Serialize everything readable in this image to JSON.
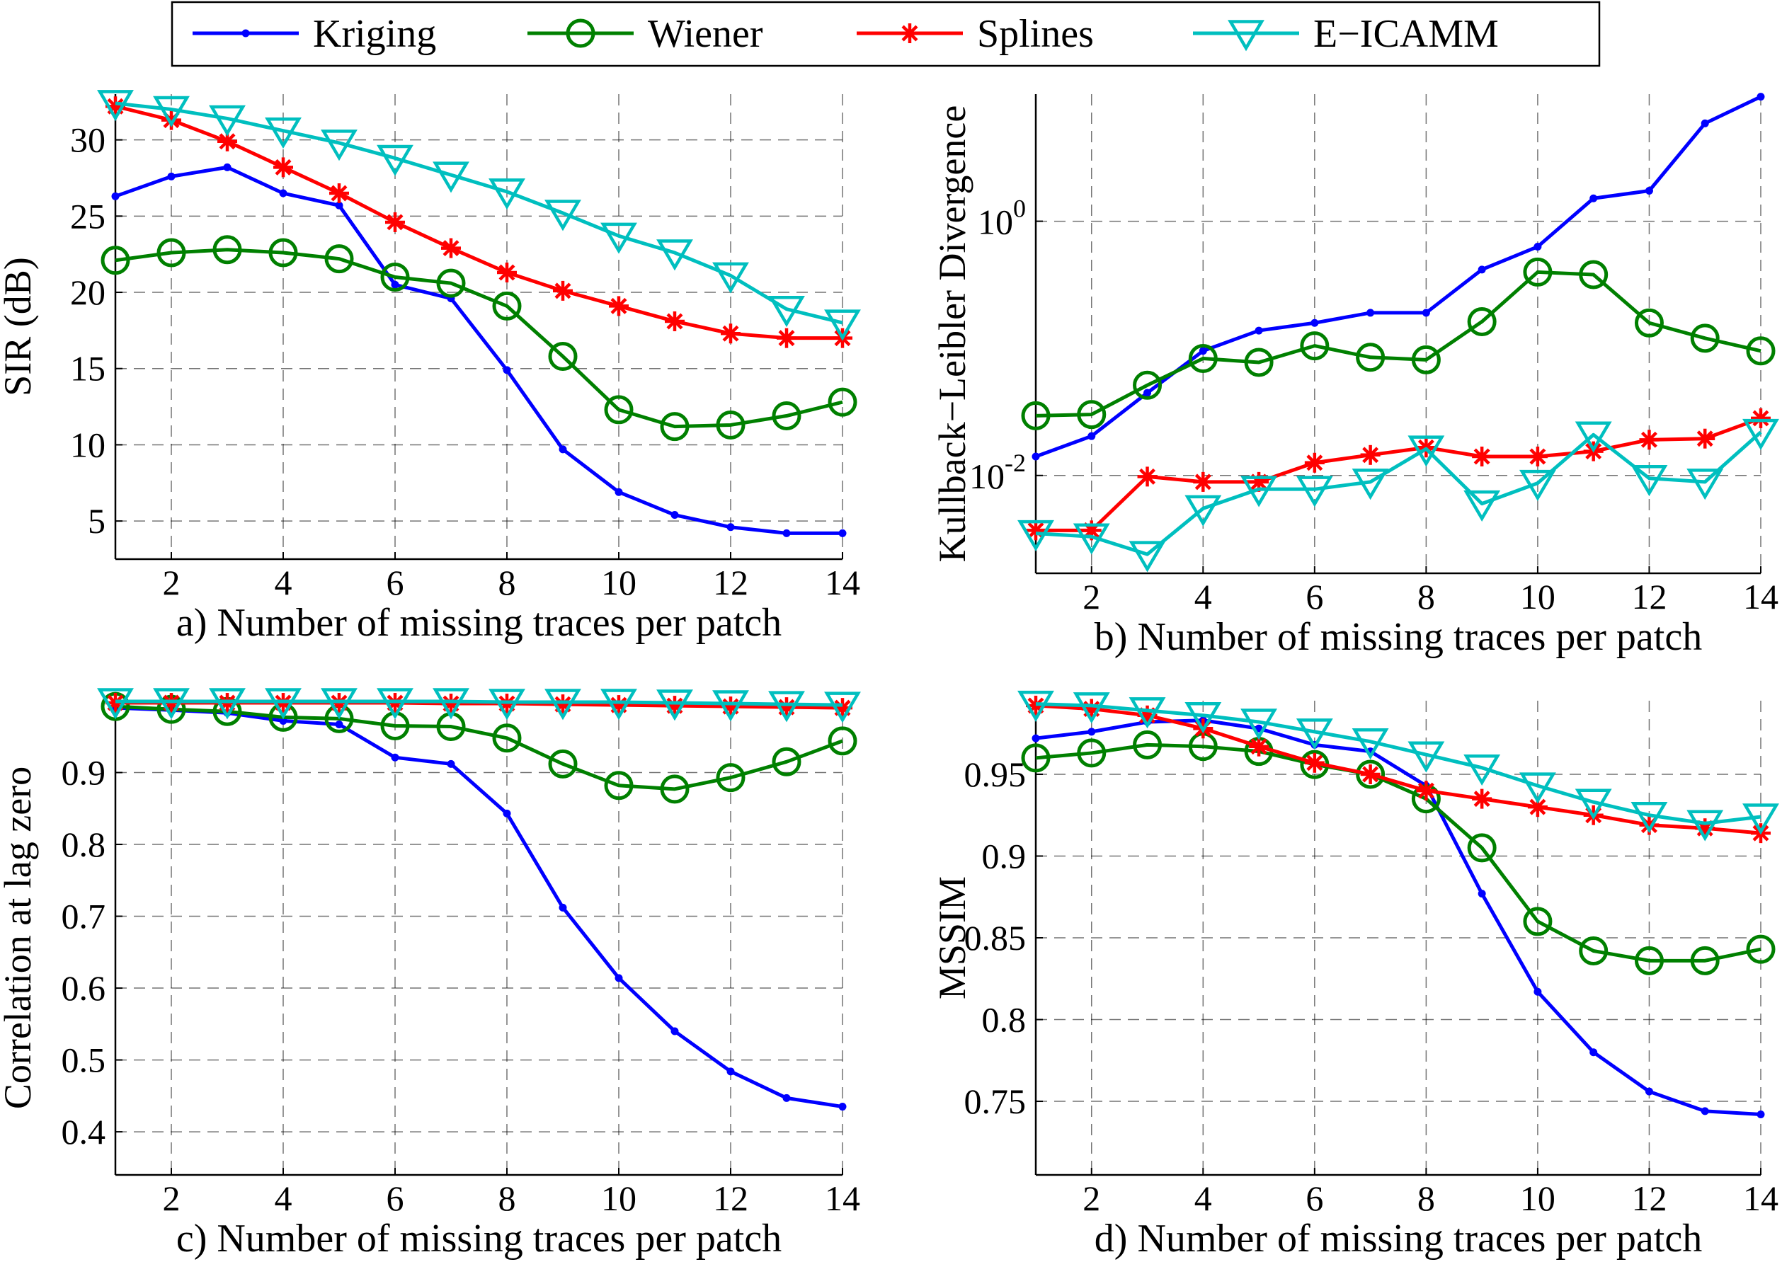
{
  "legend": {
    "entries": [
      {
        "name": "Kriging",
        "color": "#0000ff",
        "marker": "dot"
      },
      {
        "name": "Wiener",
        "color": "#008000",
        "marker": "circle"
      },
      {
        "name": "Splines",
        "color": "#ff0000",
        "marker": "asterisk"
      },
      {
        "name": "E−ICAMM",
        "color": "#00bfbf",
        "marker": "triangle-down"
      }
    ]
  },
  "chart_data": [
    {
      "type": "line",
      "xlabel": "a) Number of missing traces per patch",
      "ylabel": "SIR (dB)",
      "yscale": "linear",
      "x": [
        1,
        2,
        3,
        4,
        5,
        6,
        7,
        8,
        9,
        10,
        11,
        12,
        13,
        14
      ],
      "xlim": [
        1,
        14
      ],
      "ylim": [
        2.5,
        33
      ],
      "xticks": [
        2,
        4,
        6,
        8,
        10,
        12,
        14
      ],
      "yticks": [
        5,
        10,
        15,
        20,
        25,
        30
      ],
      "ytick_labels": [
        "5",
        "10",
        "15",
        "20",
        "25",
        "30"
      ],
      "grid": true,
      "series": [
        {
          "name": "Kriging",
          "values": [
            26.3,
            27.6,
            28.2,
            26.5,
            25.7,
            20.5,
            19.6,
            14.9,
            9.7,
            6.9,
            5.4,
            4.6,
            4.2,
            4.2
          ]
        },
        {
          "name": "Wiener",
          "values": [
            22.1,
            22.6,
            22.8,
            22.6,
            22.2,
            21.0,
            20.6,
            19.1,
            15.8,
            12.3,
            11.2,
            11.3,
            11.9,
            12.8
          ]
        },
        {
          "name": "Splines",
          "values": [
            32.2,
            31.3,
            29.9,
            28.2,
            26.5,
            24.6,
            22.9,
            21.3,
            20.1,
            19.1,
            18.1,
            17.3,
            17.0,
            17.0
          ]
        },
        {
          "name": "E−ICAMM",
          "values": [
            32.4,
            32.0,
            31.4,
            30.6,
            29.8,
            28.8,
            27.7,
            26.6,
            25.2,
            23.7,
            22.6,
            21.1,
            18.9,
            18.0
          ]
        }
      ]
    },
    {
      "type": "line",
      "xlabel": "b) Number of missing traces per patch",
      "ylabel": "Kullback−Leibler Divergence",
      "yscale": "log",
      "x": [
        1,
        2,
        3,
        4,
        5,
        6,
        7,
        8,
        9,
        10,
        11,
        12,
        13,
        14
      ],
      "xlim": [
        1,
        14
      ],
      "ylim": [
        0.0017,
        10
      ],
      "xticks": [
        2,
        4,
        6,
        8,
        10,
        12,
        14
      ],
      "yticks": [
        0.01,
        1
      ],
      "ytick_labels": [
        "10^-2",
        "10^0"
      ],
      "grid": true,
      "series": [
        {
          "name": "Kriging",
          "values": [
            0.0141,
            0.0204,
            0.0447,
            0.0955,
            0.138,
            0.1585,
            0.1905,
            0.1905,
            0.4169,
            0.631,
            1.5136,
            1.7378,
            5.8884,
            9.5499
          ]
        },
        {
          "name": "Wiener",
          "values": [
            0.0295,
            0.0302,
            0.0513,
            0.0832,
            0.0776,
            0.1047,
            0.0851,
            0.0813,
            0.1622,
            0.3981,
            0.3802,
            0.1585,
            0.1202,
            0.0955
          ]
        },
        {
          "name": "Splines",
          "values": [
            0.0037,
            0.0037,
            0.0098,
            0.0089,
            0.0089,
            0.0126,
            0.0145,
            0.0166,
            0.0141,
            0.0141,
            0.0155,
            0.0191,
            0.0195,
            0.0282
          ]
        },
        {
          "name": "E−ICAMM",
          "values": [
            0.0035,
            0.0033,
            0.0024,
            0.0055,
            0.0078,
            0.0078,
            0.0089,
            0.0162,
            0.006,
            0.0087,
            0.0209,
            0.0095,
            0.0089,
            0.0219
          ]
        }
      ]
    },
    {
      "type": "line",
      "xlabel": "c) Number of missing traces per patch",
      "ylabel": "Correlation at lag zero",
      "yscale": "linear",
      "x": [
        1,
        2,
        3,
        4,
        5,
        6,
        7,
        8,
        9,
        10,
        11,
        12,
        13,
        14
      ],
      "xlim": [
        1,
        14
      ],
      "ylim": [
        0.34,
        1.0
      ],
      "xticks": [
        2,
        4,
        6,
        8,
        10,
        12,
        14
      ],
      "yticks": [
        0.4,
        0.5,
        0.6,
        0.7,
        0.8,
        0.9
      ],
      "ytick_labels": [
        "0.4",
        "0.5",
        "0.6",
        "0.7",
        "0.8",
        "0.9"
      ],
      "grid": true,
      "series": [
        {
          "name": "Kriging",
          "values": [
            0.99,
            0.987,
            0.983,
            0.972,
            0.967,
            0.921,
            0.912,
            0.843,
            0.712,
            0.614,
            0.54,
            0.484,
            0.447,
            0.435
          ]
        },
        {
          "name": "Wiener",
          "values": [
            0.992,
            0.988,
            0.985,
            0.977,
            0.975,
            0.965,
            0.964,
            0.948,
            0.912,
            0.882,
            0.877,
            0.893,
            0.915,
            0.944
          ]
        },
        {
          "name": "Splines",
          "values": [
            0.997,
            0.997,
            0.997,
            0.997,
            0.997,
            0.997,
            0.996,
            0.996,
            0.995,
            0.994,
            0.993,
            0.992,
            0.991,
            0.99
          ]
        },
        {
          "name": "E−ICAMM",
          "values": [
            0.999,
            0.999,
            0.999,
            0.999,
            0.999,
            0.999,
            0.999,
            0.998,
            0.998,
            0.998,
            0.997,
            0.996,
            0.995,
            0.994
          ]
        }
      ]
    },
    {
      "type": "line",
      "xlabel": "d) Number of missing traces per patch",
      "ylabel": "MSSIM",
      "yscale": "linear",
      "x": [
        1,
        2,
        3,
        4,
        5,
        6,
        7,
        8,
        9,
        10,
        11,
        12,
        13,
        14
      ],
      "xlim": [
        1,
        14
      ],
      "ylim": [
        0.705,
        0.995
      ],
      "xticks": [
        2,
        4,
        6,
        8,
        10,
        12,
        14
      ],
      "yticks": [
        0.75,
        0.8,
        0.85,
        0.9,
        0.95
      ],
      "ytick_labels": [
        "0.75",
        "0.8",
        "0.85",
        "0.9",
        "0.95"
      ],
      "grid": true,
      "series": [
        {
          "name": "Kriging",
          "values": [
            0.972,
            0.976,
            0.982,
            0.983,
            0.978,
            0.968,
            0.964,
            0.943,
            0.877,
            0.817,
            0.78,
            0.756,
            0.744,
            0.742
          ]
        },
        {
          "name": "Wiener",
          "values": [
            0.96,
            0.963,
            0.968,
            0.967,
            0.964,
            0.956,
            0.95,
            0.935,
            0.905,
            0.86,
            0.842,
            0.836,
            0.836,
            0.843
          ]
        },
        {
          "name": "Splines",
          "values": [
            0.992,
            0.99,
            0.986,
            0.978,
            0.967,
            0.957,
            0.95,
            0.94,
            0.935,
            0.93,
            0.925,
            0.919,
            0.917,
            0.914
          ]
        },
        {
          "name": "E−ICAMM",
          "values": [
            0.993,
            0.992,
            0.989,
            0.986,
            0.982,
            0.976,
            0.97,
            0.962,
            0.954,
            0.943,
            0.933,
            0.925,
            0.92,
            0.924
          ]
        }
      ]
    }
  ]
}
